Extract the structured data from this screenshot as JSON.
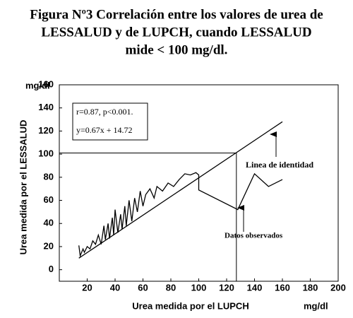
{
  "chart_data": {
    "type": "line",
    "title": [
      "Figura Nº3 Correlación entre los valores de urea de",
      "LESSALUD y de LUPCH, cuando LESSALUD",
      "mide < 100 mg/dl."
    ],
    "x_label": "Urea medida por el LUPCH",
    "x_unit": "mg/dl",
    "y_label": "Urea medida por el LESSALUD",
    "y_unit": "mg/dl",
    "xlim": [
      0,
      200
    ],
    "xticks": [
      20,
      40,
      60,
      80,
      100,
      120,
      140,
      160,
      180,
      200
    ],
    "ylim": [
      -10,
      160
    ],
    "yticks": [
      0,
      20,
      40,
      60,
      80,
      100,
      120,
      140,
      160
    ],
    "series": [
      {
        "color": "#000000",
        "x": [
          14,
          15,
          17,
          18,
          20,
          22,
          24,
          26,
          28,
          30,
          32,
          33,
          35,
          36,
          38,
          39,
          40,
          42,
          44,
          45,
          47,
          48,
          50,
          52,
          54,
          56,
          58,
          60,
          62,
          65,
          68,
          70,
          74,
          78,
          82,
          86,
          90,
          94,
          98,
          100,
          100,
          128,
          140,
          150,
          160
        ],
        "values": [
          21,
          12,
          18,
          15,
          20,
          18,
          25,
          22,
          30,
          22,
          38,
          26,
          40,
          27,
          45,
          30,
          52,
          32,
          48,
          35,
          55,
          38,
          60,
          42,
          62,
          50,
          68,
          55,
          65,
          70,
          62,
          72,
          68,
          75,
          72,
          78,
          83,
          82,
          84,
          82,
          69,
          52,
          83,
          72,
          78
        ]
      },
      {
        "color": "#000000",
        "x": [
          14,
          160
        ],
        "values": [
          10,
          128
        ]
      }
    ],
    "reference_lines": {
      "y": 101,
      "x": 127
    },
    "stats": [
      "r=0.87, p<0.001.",
      "y=0.67x + 14.72"
    ],
    "annotations": [
      "Linea de identidad",
      "Datos observados"
    ]
  }
}
